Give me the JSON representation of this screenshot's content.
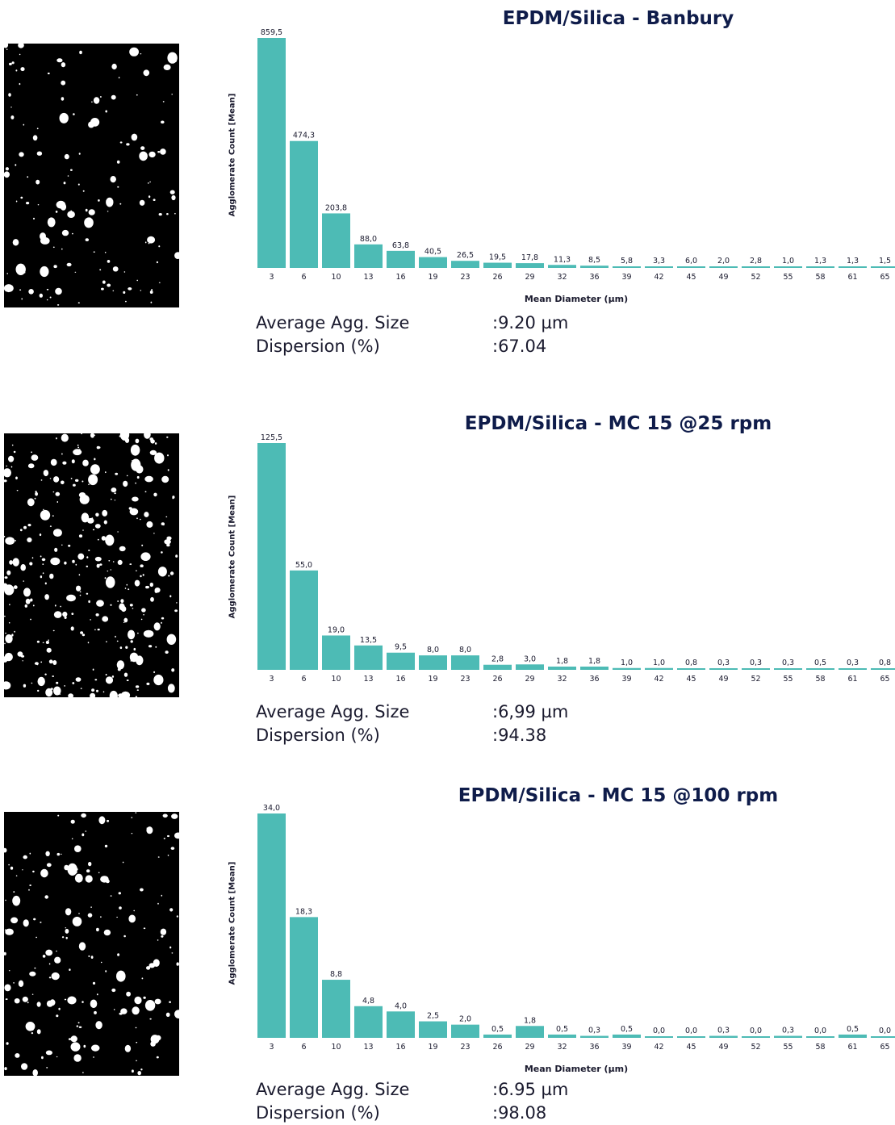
{
  "colors": {
    "bar": "#4DBBB5",
    "title": "#0f1c4a",
    "text": "#1a1a2e"
  },
  "charts": [
    {
      "title": "EPDM/Silica -  Banbury",
      "ylabel": "Agglomerate Count [Mean]",
      "xlabel": "Mean Diameter (µm)",
      "stats": {
        "avg_label": "Average Agg. Size",
        "avg_value": ":9.20 µm",
        "disp_label": "Dispersion (%)",
        "disp_value": ":67.04"
      },
      "micrograph": "micrograph-sparse-particles"
    },
    {
      "title": "EPDM/Silica - MC 15 @25 rpm",
      "ylabel": "Agglomerate Count [Mean]",
      "xlabel": "Mean Diameter (µm)",
      "stats": {
        "avg_label": "Average Agg. Size",
        "avg_value": ":6,99 µm",
        "disp_label": "Dispersion (%)",
        "disp_value": ":94.38"
      },
      "micrograph": "micrograph-dense-particles"
    },
    {
      "title": "EPDM/Silica - MC 15 @100 rpm",
      "ylabel": "Agglomerate Count [Mean]",
      "xlabel": "Mean Diameter (µm)",
      "stats": {
        "avg_label": "Average Agg. Size",
        "avg_value": ":6.95 µm",
        "disp_label": "Dispersion (%)",
        "disp_value": ":98.08"
      },
      "micrograph": "micrograph-fine-particles"
    }
  ],
  "chart_data": [
    {
      "type": "bar",
      "title": "EPDM/Silica -  Banbury",
      "xlabel": "Mean Diameter (µm)",
      "ylabel": "Agglomerate Count [Mean]",
      "categories": [
        "3",
        "6",
        "10",
        "13",
        "16",
        "19",
        "23",
        "26",
        "29",
        "32",
        "36",
        "39",
        "42",
        "45",
        "49",
        "52",
        "55",
        "58",
        "61",
        "65"
      ],
      "values": [
        859.5,
        474.3,
        203.8,
        88.0,
        63.8,
        40.5,
        26.5,
        19.5,
        17.8,
        11.3,
        8.5,
        5.8,
        3.3,
        6.0,
        2.0,
        2.8,
        1.0,
        1.3,
        1.3,
        1.5
      ],
      "value_labels": [
        "859,5",
        "474,3",
        "203,8",
        "88,0",
        "63,8",
        "40,5",
        "26,5",
        "19,5",
        "17,8",
        "11,3",
        "8,5",
        "5,8",
        "3,3",
        "6,0",
        "2,0",
        "2,8",
        "1,0",
        "1,3",
        "1,3",
        "1,5"
      ],
      "ylim": [
        0,
        859.5
      ],
      "grid": false
    },
    {
      "type": "bar",
      "title": "EPDM/Silica - MC 15 @25 rpm",
      "xlabel": "Mean Diameter (µm)",
      "ylabel": "Agglomerate Count [Mean]",
      "categories": [
        "3",
        "6",
        "10",
        "13",
        "16",
        "19",
        "23",
        "26",
        "29",
        "32",
        "36",
        "39",
        "42",
        "45",
        "49",
        "52",
        "55",
        "58",
        "61",
        "65"
      ],
      "values": [
        125.5,
        55.0,
        19.0,
        13.5,
        9.5,
        8.0,
        8.0,
        2.8,
        3.0,
        1.8,
        1.8,
        1.0,
        1.0,
        0.8,
        0.3,
        0.3,
        0.3,
        0.5,
        0.3,
        0.8
      ],
      "value_labels": [
        "125,5",
        "55,0",
        "19,0",
        "13,5",
        "9,5",
        "8,0",
        "8,0",
        "2,8",
        "3,0",
        "1,8",
        "1,8",
        "1,0",
        "1,0",
        "0,8",
        "0,3",
        "0,3",
        "0,3",
        "0,5",
        "0,3",
        "0,8"
      ],
      "ylim": [
        0,
        125.5
      ],
      "grid": false
    },
    {
      "type": "bar",
      "title": "EPDM/Silica - MC 15 @100 rpm",
      "xlabel": "Mean Diameter (µm)",
      "ylabel": "Agglomerate Count [Mean]",
      "categories": [
        "3",
        "6",
        "10",
        "13",
        "16",
        "19",
        "23",
        "26",
        "29",
        "32",
        "36",
        "39",
        "42",
        "45",
        "49",
        "52",
        "55",
        "58",
        "61",
        "65"
      ],
      "values": [
        34.0,
        18.3,
        8.8,
        4.8,
        4.0,
        2.5,
        2.0,
        0.5,
        1.8,
        0.5,
        0.3,
        0.5,
        0.0,
        0.0,
        0.3,
        0.0,
        0.3,
        0.0,
        0.5,
        0.0
      ],
      "value_labels": [
        "34,0",
        "18,3",
        "8,8",
        "4,8",
        "4,0",
        "2,5",
        "2,0",
        "0,5",
        "1,8",
        "0,5",
        "0,3",
        "0,5",
        "0,0",
        "0,0",
        "0,3",
        "0,0",
        "0,3",
        "0,0",
        "0,5",
        "0,0"
      ],
      "ylim": [
        0,
        34.0
      ],
      "grid": false
    }
  ]
}
